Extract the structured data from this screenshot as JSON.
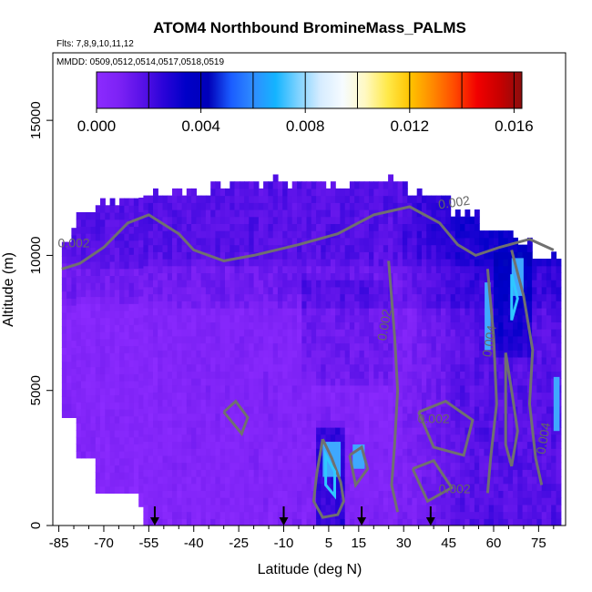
{
  "header": {
    "title": "ATOM4 Northbound BromineMass_PALMS",
    "flights": "Flts: 7,8,9,10,11,12",
    "dates": "MMDD: 0509,0512,0514,0517,0518,0519"
  },
  "chart_data": {
    "type": "heatmap",
    "title": "ATOM4 Northbound BromineMass_PALMS",
    "xlabel": "Latitude (deg N)",
    "ylabel": "Altitude (m)",
    "xlim": [
      -87,
      84
    ],
    "ylim": [
      0,
      17500
    ],
    "x_tick_values": [
      -85,
      -70,
      -55,
      -40,
      -25,
      -10,
      5,
      15,
      30,
      45,
      60,
      75
    ],
    "x_tick_labels": [
      "-85",
      "-70",
      "-55",
      "-40",
      "-25",
      "-10",
      "5",
      "15",
      "30",
      "45",
      "60",
      "75"
    ],
    "x_minor_ticks": [
      -80,
      -75,
      -65,
      -60,
      -50,
      -45,
      -35,
      -30,
      -20,
      -15,
      -5,
      0,
      10,
      20,
      25,
      35,
      40,
      50,
      55,
      65,
      70,
      80
    ],
    "y_tick_values": [
      0,
      5000,
      10000,
      15000
    ],
    "y_tick_labels": [
      "0",
      "5000",
      "10000",
      "15000"
    ],
    "colorbar": {
      "min": 0.0,
      "max": 0.0163,
      "tick_values": [
        0.0,
        0.004,
        0.008,
        0.012,
        0.016
      ],
      "tick_labels": [
        "0.000",
        "0.004",
        "0.008",
        "0.012",
        "0.016"
      ],
      "box_values": [
        0.002,
        0.004,
        0.006,
        0.008,
        0.01,
        0.012,
        0.014,
        0.016
      ],
      "color_stops": [
        "#8c2bff",
        "#7d22f5",
        "#5a12e8",
        "#2a03d8",
        "#0000c8",
        "#0000b8",
        "#1a5cff",
        "#2f8cff",
        "#14b4ff",
        "#7dd2ff",
        "#d6ecff",
        "#f6fbff",
        "#fff9c2",
        "#ffe94a",
        "#ffc400",
        "#ff8a00",
        "#ff4a00",
        "#f20000",
        "#c80000",
        "#8c0d0d"
      ]
    },
    "contour_labels": [
      "0.002",
      "0.002",
      "0.002",
      "0.004",
      "0.002",
      "0.002",
      "0.004"
    ],
    "flight_markers_lat": [
      -53,
      -10,
      16,
      39
    ],
    "grid": false,
    "legend": "colorbar-top-inset"
  }
}
